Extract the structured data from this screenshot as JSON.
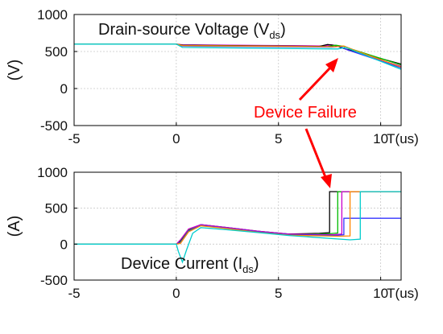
{
  "chart_data": [
    {
      "type": "line",
      "title": "Drain-source Voltage (V",
      "title_subscript": "ds",
      "title_suffix": ")",
      "ylabel": "(V)",
      "xlabel": "T(us)",
      "xlim": [
        -5,
        11
      ],
      "ylim": [
        -500,
        1000
      ],
      "xticks": [
        "-5",
        "0",
        "5",
        "10"
      ],
      "yticks": [
        "1000",
        "500",
        "0",
        "-500"
      ],
      "grid": true,
      "series": [
        {
          "color": "#cc00cc",
          "x": [
            -5,
            0,
            0.3,
            7.2,
            7.6,
            8.0,
            8.4,
            11
          ],
          "y": [
            600,
            600,
            590,
            575,
            590,
            565,
            520,
            300
          ]
        },
        {
          "color": "#000000",
          "x": [
            -5,
            0,
            0.3,
            7.0,
            7.4,
            7.8,
            8.2,
            11
          ],
          "y": [
            600,
            600,
            585,
            570,
            595,
            580,
            540,
            330
          ]
        },
        {
          "color": "#00bb00",
          "x": [
            -5,
            0,
            0.3,
            7.4,
            7.8,
            8.2,
            8.6,
            11
          ],
          "y": [
            600,
            600,
            580,
            565,
            585,
            570,
            530,
            320
          ]
        },
        {
          "color": "#3333ff",
          "x": [
            -5,
            0,
            0.3,
            7.6,
            8.0,
            8.4,
            11
          ],
          "y": [
            600,
            600,
            575,
            560,
            570,
            520,
            280
          ]
        },
        {
          "color": "#ff8800",
          "x": [
            -5,
            0,
            0.3,
            7.8,
            8.2,
            8.6,
            11
          ],
          "y": [
            600,
            600,
            580,
            565,
            575,
            530,
            290
          ]
        },
        {
          "color": "#00cccc",
          "x": [
            -5,
            0,
            0.3,
            7.9,
            8.3,
            8.7,
            11
          ],
          "y": [
            600,
            600,
            555,
            535,
            555,
            510,
            260
          ]
        }
      ]
    },
    {
      "type": "line",
      "title": "Device Current (I",
      "title_subscript": "ds",
      "title_suffix": ")",
      "ylabel": "(A)",
      "xlabel": "T(us)",
      "xlim": [
        -5,
        11
      ],
      "ylim": [
        -500,
        1000
      ],
      "xticks": [
        "-5",
        "0",
        "5",
        "10"
      ],
      "yticks": [
        "1000",
        "500",
        "0",
        "-500"
      ],
      "grid": true,
      "series": [
        {
          "color": "#000000",
          "x": [
            -5,
            0,
            0.2,
            0.6,
            1.2,
            2.5,
            4.0,
            5.5,
            7.0,
            7.5,
            7.5,
            11
          ],
          "y": [
            0,
            0,
            40,
            200,
            270,
            230,
            180,
            140,
            150,
            160,
            730,
            730
          ]
        },
        {
          "color": "#00bb00",
          "x": [
            -5,
            0,
            0.2,
            0.6,
            1.2,
            2.5,
            4.0,
            5.5,
            7.5,
            7.9,
            7.9,
            11
          ],
          "y": [
            0,
            0,
            30,
            190,
            265,
            225,
            175,
            135,
            145,
            155,
            730,
            730
          ]
        },
        {
          "color": "#cc00cc",
          "x": [
            -5,
            0,
            0.2,
            0.6,
            1.2,
            2.5,
            4.0,
            5.5,
            7.7,
            8.1,
            8.1,
            11
          ],
          "y": [
            0,
            0,
            60,
            210,
            270,
            230,
            180,
            140,
            130,
            140,
            730,
            730
          ]
        },
        {
          "color": "#3333ff",
          "x": [
            -5,
            0,
            0.2,
            0.6,
            1.2,
            2.5,
            4.0,
            5.5,
            7.8,
            8.2,
            8.2,
            11
          ],
          "y": [
            0,
            0,
            20,
            180,
            260,
            220,
            170,
            130,
            120,
            130,
            360,
            360
          ]
        },
        {
          "color": "#ff8800",
          "x": [
            -5,
            0,
            0.2,
            0.6,
            1.2,
            2.5,
            4.0,
            5.5,
            8.0,
            8.5,
            8.5,
            11
          ],
          "y": [
            0,
            0,
            10,
            170,
            255,
            215,
            165,
            125,
            110,
            115,
            730,
            730
          ]
        },
        {
          "color": "#00cccc",
          "x": [
            -5,
            0,
            0.1,
            0.3,
            0.5,
            0.8,
            1.2,
            2.5,
            4.0,
            5.5,
            8.5,
            9.0,
            9.0,
            11
          ],
          "y": [
            0,
            0,
            -100,
            -250,
            -80,
            150,
            230,
            200,
            160,
            120,
            60,
            70,
            730,
            730
          ]
        }
      ]
    }
  ],
  "annotation": {
    "text": "Device Failure",
    "color": "#ff0000"
  }
}
